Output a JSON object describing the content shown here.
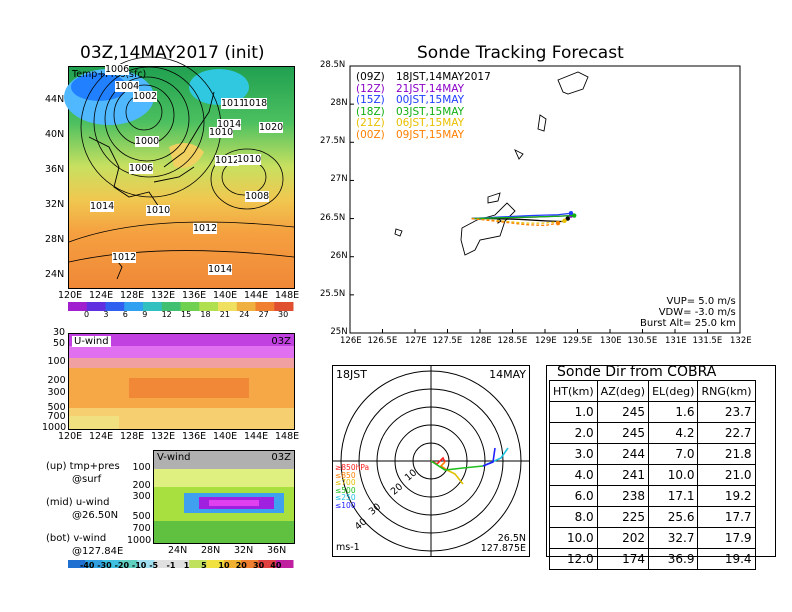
{
  "left": {
    "title": "03Z,14MAY2017 (init)",
    "map_overlay_label": "Temp+Pres(sfc)",
    "pressure_labels": [
      "1006",
      "1004",
      "1002",
      "1000",
      "1011",
      "1018",
      "1014",
      "1010",
      "1020",
      "1006",
      "1012",
      "1010",
      "1008",
      "1014",
      "1010",
      "1012",
      "1012",
      "1014"
    ],
    "map_x_ticks": [
      "120E",
      "124E",
      "128E",
      "132E",
      "136E",
      "140E",
      "144E",
      "148E"
    ],
    "map_y_ticks": [
      "44N",
      "40N",
      "36N",
      "32N",
      "28N",
      "24N"
    ],
    "temp_colorbar_ticks": [
      "0",
      "3",
      "6",
      "9",
      "12",
      "15",
      "18",
      "21",
      "24",
      "27",
      "30"
    ],
    "uwind": {
      "label": "U-wind",
      "time": "03Z",
      "y_ticks": [
        "30",
        "50",
        "100",
        "200",
        "300",
        "500",
        "700",
        "1000"
      ],
      "x_ticks": [
        "120E",
        "124E",
        "128E",
        "132E",
        "136E",
        "140E",
        "144E",
        "148E"
      ]
    },
    "vwind": {
      "label": "V-wind",
      "time": "03Z",
      "y_ticks": [
        "100",
        "200",
        "300",
        "500",
        "700",
        "1000"
      ],
      "x_ticks": [
        "24N",
        "28N",
        "32N",
        "36N"
      ]
    },
    "legend_lines": [
      [
        "(up) tmp+pres",
        "@surf"
      ],
      [
        "(mid) u-wind",
        "@26.50N"
      ],
      [
        "(bot) v-wind",
        "@127.84E"
      ]
    ],
    "wind_colorbar_ticks": [
      "-40",
      "-30",
      "-20",
      "-10",
      "-5",
      "-1",
      "1",
      "5",
      "10",
      "20",
      "30",
      "40"
    ]
  },
  "track": {
    "title": "Sonde Tracking Forecast",
    "y_ticks": [
      "28.5N",
      "28N",
      "27.5N",
      "27N",
      "26.5N",
      "26N",
      "25.5N",
      "25N"
    ],
    "x_ticks": [
      "126E",
      "126.5E",
      "127E",
      "127.5E",
      "128E",
      "128.5E",
      "129E",
      "129.5E",
      "130E",
      "130.5E",
      "131E",
      "131.5E",
      "132E"
    ],
    "legend": [
      {
        "code": "(09Z)",
        "label": "18JST,14MAY2017",
        "color": "#000000"
      },
      {
        "code": "(12Z)",
        "label": "21JST,14MAY",
        "color": "#8a00c8"
      },
      {
        "code": "(15Z)",
        "label": "00JST,15MAY",
        "color": "#1f3cff"
      },
      {
        "code": "(18Z)",
        "label": "03JST,15MAY",
        "color": "#10b010"
      },
      {
        "code": "(21Z)",
        "label": "06JST,15MAY",
        "color": "#e8c000"
      },
      {
        "code": "(00Z)",
        "label": "09JST,15MAY",
        "color": "#ff8000"
      }
    ],
    "info": [
      "VUP=  5.0 m/s",
      "VDW= -3.0 m/s",
      "Burst Alt= 25.0 km"
    ]
  },
  "chart_data": [
    {
      "type": "line",
      "title": "Sonde Tracking Forecast",
      "xlim": [
        126,
        132
      ],
      "ylim": [
        25,
        28.5
      ],
      "series": [
        {
          "name": "(09Z) 18JST,14MAY2017",
          "x": [
            127.87,
            128.2,
            128.6,
            129.0,
            129.3,
            129.35
          ],
          "y": [
            26.5,
            26.5,
            26.49,
            26.47,
            26.46,
            26.5
          ]
        },
        {
          "name": "(12Z) 21JST,14MAY",
          "x": [
            127.87,
            128.3,
            128.8,
            129.2,
            129.4
          ],
          "y": [
            26.5,
            26.51,
            26.52,
            26.53,
            26.54
          ]
        },
        {
          "name": "(15Z) 00JST,15MAY",
          "x": [
            127.87,
            128.3,
            128.8,
            129.2,
            129.4
          ],
          "y": [
            26.5,
            26.52,
            26.54,
            26.55,
            26.57
          ]
        },
        {
          "name": "(18Z) 03JST,15MAY",
          "x": [
            127.87,
            128.3,
            128.8,
            129.2,
            129.45
          ],
          "y": [
            26.5,
            26.51,
            26.52,
            26.53,
            26.54
          ]
        },
        {
          "name": "(21Z) 06JST,15MAY",
          "x": [
            127.87,
            128.3,
            128.7,
            129.0,
            129.3
          ],
          "y": [
            26.5,
            26.47,
            26.44,
            26.44,
            26.47
          ]
        },
        {
          "name": "(00Z) 09JST,15MAY",
          "x": [
            127.87,
            128.3,
            128.7,
            129.0,
            129.2
          ],
          "y": [
            26.5,
            26.46,
            26.42,
            26.41,
            26.44
          ]
        }
      ]
    },
    {
      "type": "table",
      "title": "Sonde Dir from COBRA",
      "columns": [
        "HT(km)",
        "AZ(deg)",
        "EL(deg)",
        "RNG(km)"
      ],
      "rows": [
        [
          "1.0",
          "245",
          "1.6",
          "23.7"
        ],
        [
          "2.0",
          "245",
          "4.2",
          "22.7"
        ],
        [
          "3.0",
          "244",
          "7.0",
          "21.8"
        ],
        [
          "4.0",
          "241",
          "10.0",
          "21.0"
        ],
        [
          "6.0",
          "238",
          "17.1",
          "19.2"
        ],
        [
          "8.0",
          "225",
          "25.6",
          "17.7"
        ],
        [
          "10.0",
          "202",
          "32.7",
          "17.9"
        ],
        [
          "12.0",
          "174",
          "36.9",
          "19.4"
        ]
      ]
    }
  ],
  "hodo": {
    "time_left": "18JST",
    "time_right": "14MAY",
    "ring_labels": [
      "10",
      "20",
      "30",
      "40"
    ],
    "levels": [
      {
        "label": "≥850hPa",
        "color": "#ff2020"
      },
      {
        "label": "≤850",
        "color": "#ff8000"
      },
      {
        "label": "≤700",
        "color": "#e0c000"
      },
      {
        "label": "≤500",
        "color": "#20c020"
      },
      {
        "label": "≤250",
        "color": "#20c0e0"
      },
      {
        "label": "≤100",
        "color": "#2020ff"
      }
    ],
    "unit": "ms-1",
    "lat": "26.5N",
    "lon": "127.875E"
  }
}
